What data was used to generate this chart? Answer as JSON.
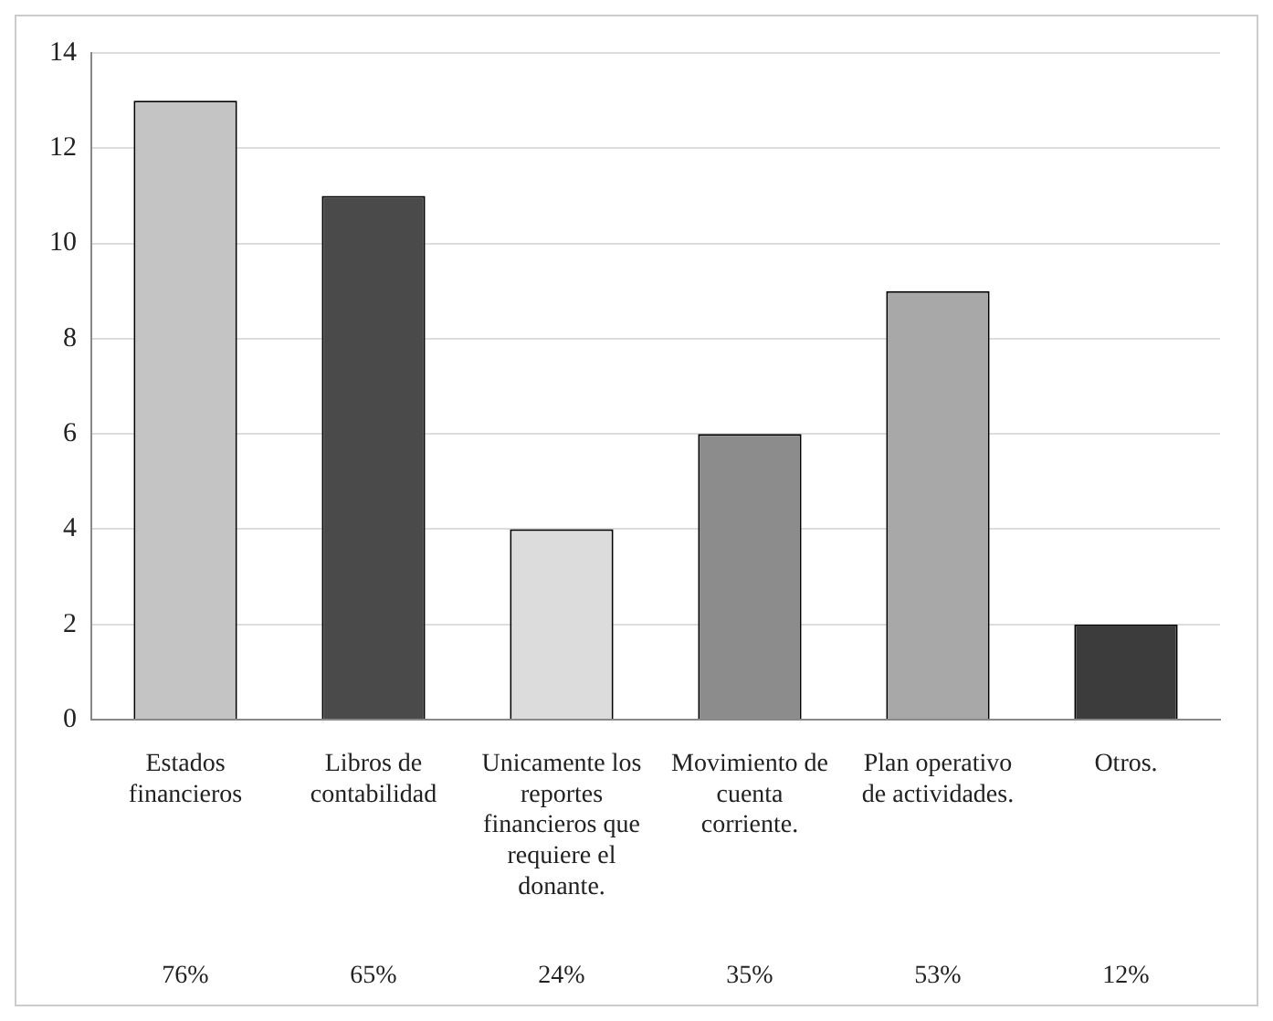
{
  "chart_data": {
    "type": "bar",
    "categories": [
      "Estados financieros",
      "Libros de contabilidad",
      "Unicamente los reportes financieros que requiere el donante.",
      "Movimiento de cuenta corriente.",
      "Plan operativo de actividades.",
      "Otros."
    ],
    "values": [
      13,
      11,
      4,
      6,
      9,
      2
    ],
    "colors": [
      "#c4c4c4",
      "#4a4a4a",
      "#dcdcdc",
      "#8c8c8c",
      "#a8a8a8",
      "#3c3c3c"
    ],
    "annotations": [
      "76%",
      "65%",
      "24%",
      "35%",
      "53%",
      "12%"
    ],
    "ylim": [
      0,
      14
    ],
    "yticks": [
      0,
      2,
      4,
      6,
      8,
      10,
      12,
      14
    ],
    "grid": "y",
    "legend": false
  }
}
